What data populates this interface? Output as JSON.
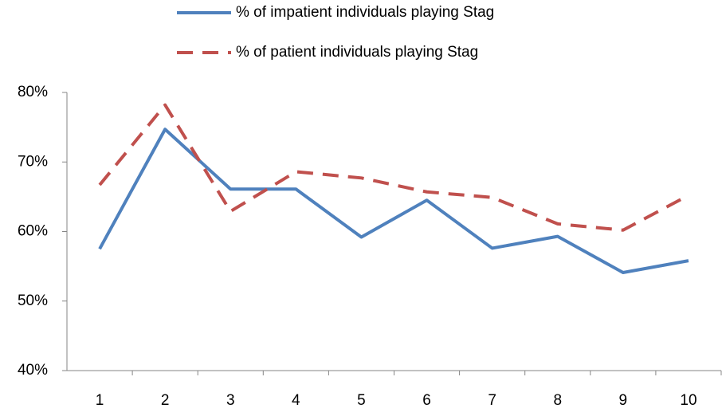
{
  "chart_data": {
    "type": "line",
    "categories": [
      "1",
      "2",
      "3",
      "4",
      "5",
      "6",
      "7",
      "8",
      "9",
      "10"
    ],
    "series": [
      {
        "name": "% of impatient individuals playing Stag",
        "color": "#4f81bd",
        "line_style": "solid",
        "values": [
          57.5,
          74.7,
          66.1,
          66.1,
          59.2,
          64.5,
          57.6,
          59.3,
          54.1,
          55.8
        ]
      },
      {
        "name": "% of patient individuals playing Stag",
        "color": "#c0504d",
        "line_style": "dashed",
        "values": [
          66.7,
          78.2,
          62.9,
          68.6,
          67.7,
          65.7,
          64.9,
          61.1,
          60.2,
          65.2
        ]
      }
    ],
    "ylim": [
      40,
      80
    ],
    "yticks": [
      {
        "value": 40,
        "label": "40%"
      },
      {
        "value": 50,
        "label": "50%"
      },
      {
        "value": 60,
        "label": "60%"
      },
      {
        "value": 70,
        "label": "70%"
      },
      {
        "value": 80,
        "label": "80%"
      }
    ],
    "grid": false,
    "legend": "top"
  }
}
